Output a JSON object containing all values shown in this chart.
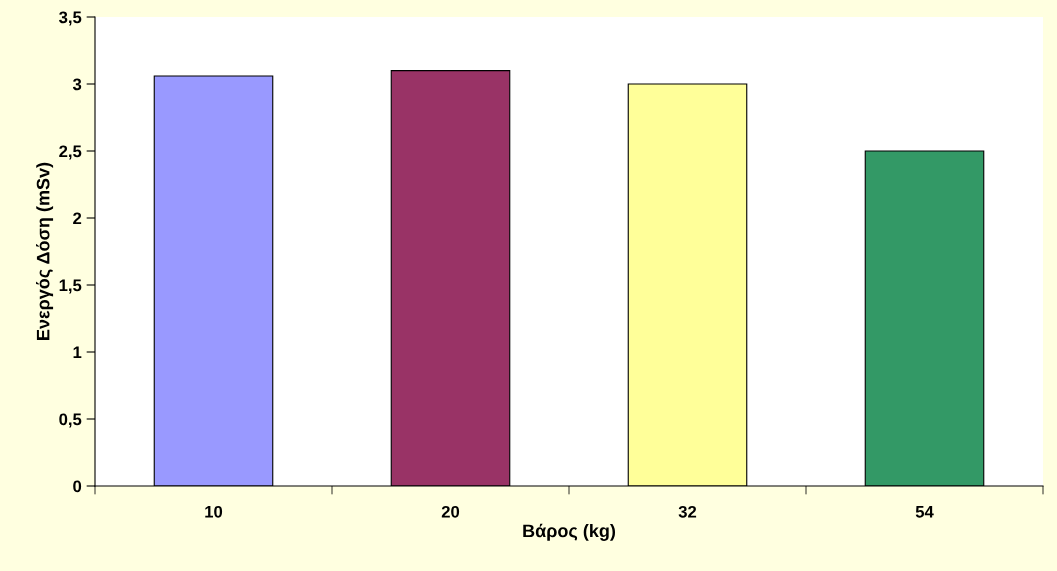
{
  "chart_data": {
    "type": "bar",
    "xlabel": "Βάρος (kg)",
    "ylabel": "Ενεργός Δόση (mSv)",
    "categories": [
      "10",
      "20",
      "32",
      "54"
    ],
    "values": [
      3.06,
      3.1,
      3.0,
      2.5
    ],
    "colors": [
      "#9999ff",
      "#993366",
      "#ffff99",
      "#339966"
    ],
    "ylim": [
      0,
      3.5
    ],
    "yticks": [
      0,
      {
        "value": 0.5,
        "label": "0,5"
      },
      1,
      {
        "value": 1.5,
        "label": "1,5"
      },
      2,
      {
        "value": 2.5,
        "label": "2,5"
      },
      3,
      {
        "value": 3.5,
        "label": "3,5"
      }
    ],
    "grid": false
  }
}
